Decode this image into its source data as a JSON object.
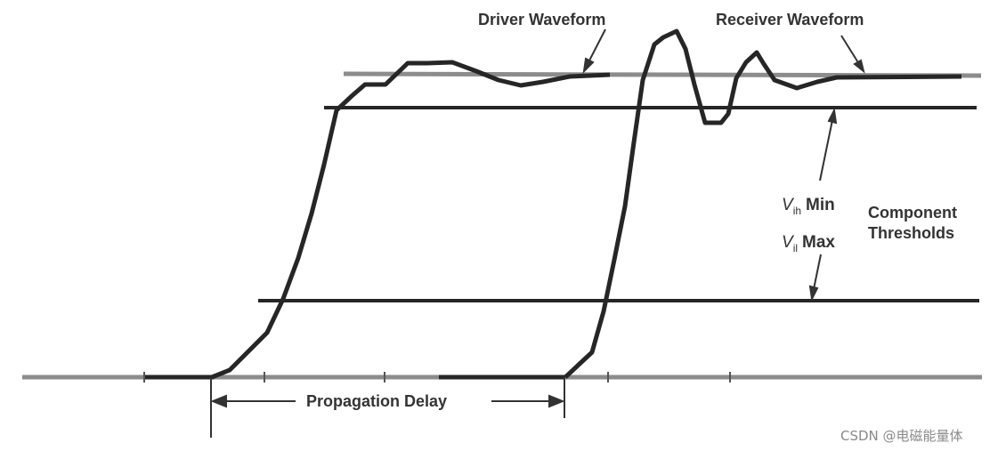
{
  "labels": {
    "driver_waveform": "Driver Waveform",
    "receiver_waveform": "Receiver Waveform",
    "vih_v": "V",
    "vih_sub": "ih",
    "vih_rest": "Min",
    "vil_v": "V",
    "vil_sub": "il",
    "vil_rest": "Max",
    "component": "Component",
    "thresholds": "Thresholds",
    "propagation_delay": "Propagation Delay"
  },
  "watermark": "CSDN @电磁能量体",
  "colors": {
    "line_dark": "#262626",
    "line_gray": "#8c8c8c",
    "text": "#333333",
    "watermark": "#8a8a8a"
  }
}
